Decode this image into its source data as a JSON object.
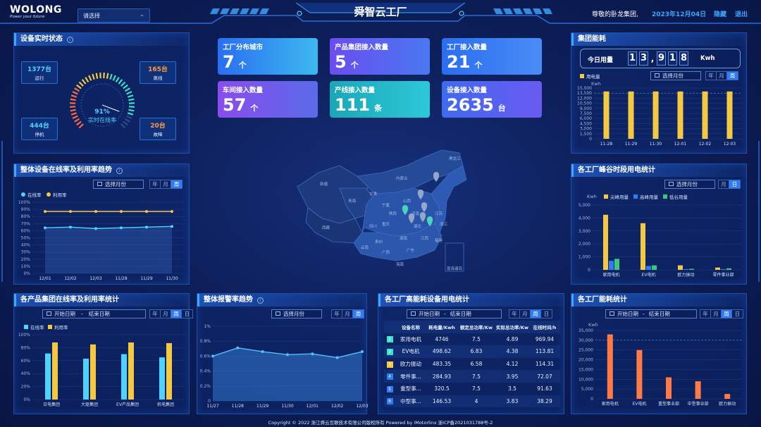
{
  "header": {
    "logo": "WOLONG",
    "logo_sub": "Power your future",
    "select_placeholder": "请选择",
    "title": "舜智云工厂",
    "greeting": "尊敬的卧龙集团,",
    "date": "2023年12月04日",
    "hide_label": "隐藏",
    "logout_label": "退出"
  },
  "device_status": {
    "title": "设备实时状态",
    "running": {
      "value": "1377台",
      "label": "运行"
    },
    "offline": {
      "value": "165台",
      "label": "离线"
    },
    "standby": {
      "value": "444台",
      "label": "停机"
    },
    "fault": {
      "value": "20台",
      "label": "故障"
    },
    "gauge": {
      "percent": "91%",
      "label": "实时在线率",
      "fraction": 0.91
    }
  },
  "kpis": [
    {
      "label": "工厂分布城市",
      "value": "7",
      "unit": "个"
    },
    {
      "label": "产品集团接入数量",
      "value": "5",
      "unit": "个"
    },
    {
      "label": "工厂接入数量",
      "value": "21",
      "unit": "个"
    },
    {
      "label": "车间接入数量",
      "value": "57",
      "unit": "个"
    },
    {
      "label": "产线接入数量",
      "value": "111",
      "unit": "条"
    },
    {
      "label": "设备接入数量",
      "value": "2635",
      "unit": "台"
    }
  ],
  "group_energy": {
    "title": "集团能耗",
    "today_label": "今日用量",
    "digits": [
      "1",
      "3",
      ",",
      "9",
      "1",
      "8"
    ],
    "unit": "Kwh",
    "month_picker": "选择月份",
    "seg": [
      "年",
      "月",
      "周"
    ],
    "legend": "用电量",
    "yunit": "Kwh"
  },
  "online_trend": {
    "title": "整体设备在线率及利用率趋势",
    "month_picker": "选择月份",
    "seg": [
      "年",
      "月",
      "周"
    ],
    "legend": [
      "在线率",
      "利用率"
    ]
  },
  "peak_valley": {
    "title": "各工厂峰谷时段用电统计",
    "month_picker": "选择月份",
    "seg": [
      "月",
      "日"
    ],
    "legend": [
      "尖峰用量",
      "高峰用量",
      "低谷用量"
    ],
    "yunit": "Kwh"
  },
  "group_rate": {
    "title": "各产品集团在线率及利用率统计",
    "start": "开始日期",
    "dash": "-",
    "end": "结束日期",
    "seg": [
      "年",
      "月",
      "周",
      "日"
    ],
    "legend": [
      "在线率",
      "利用率"
    ]
  },
  "alarm": {
    "title": "整体报警率趋势",
    "month_picker": "选择月份",
    "seg": [
      "年",
      "月",
      "周"
    ]
  },
  "high_energy": {
    "title": "各工厂高能耗设备用电统计",
    "start": "开始日期",
    "dash": "-",
    "end": "结束日期",
    "seg": [
      "年",
      "月",
      "周",
      "日"
    ],
    "headers": [
      "设备名称",
      "耗电量/Kwh",
      "额定总功率/Kw",
      "实际总功率/Kw",
      "在线时间/h"
    ],
    "rows": [
      {
        "rank": "1",
        "name": "家用电机",
        "energy": "4746",
        "rated": "7.5",
        "actual": "4.89",
        "hours": "969.94"
      },
      {
        "rank": "2",
        "name": "EV电机",
        "energy": "498.62",
        "rated": "6.83",
        "actual": "4.38",
        "hours": "113.81"
      },
      {
        "rank": "3",
        "name": "欧力振动",
        "energy": "483.35",
        "rated": "6.58",
        "actual": "4.12",
        "hours": "114.31"
      },
      {
        "rank": "4",
        "name": "零件事...",
        "energy": "284.93",
        "rated": "7.5",
        "actual": "3.95",
        "hours": "72.07"
      },
      {
        "rank": "5",
        "name": "重型事...",
        "energy": "320.5",
        "rated": "7.5",
        "actual": "3.5",
        "hours": "91.63"
      },
      {
        "rank": "6",
        "name": "中型事...",
        "energy": "146.53",
        "rated": "4",
        "actual": "3.83",
        "hours": "38.29"
      }
    ]
  },
  "factory_energy": {
    "title": "各工厂能耗统计",
    "start": "开始日期",
    "dash": "-",
    "end": "结束日期",
    "seg": [
      "年",
      "月",
      "周",
      "日"
    ],
    "yunit": "Kwh"
  },
  "map": {
    "labels": [
      "黑龙江",
      "内蒙古",
      "新疆",
      "青海",
      "西藏",
      "甘肃",
      "宁夏",
      "山西",
      "河南",
      "湖北",
      "四川",
      "重庆",
      "贵州",
      "湖南",
      "江西",
      "福建",
      "广东",
      "广西",
      "云南",
      "海南",
      "江苏",
      "浙江",
      "陕西",
      "南海诸岛"
    ]
  },
  "footer": "Copyright © 2022 浙江舜云互联技术有限公司版权所有 Powered by iMotorlinx 浙ICP备2021031788号-2",
  "colors": {
    "accent": "#2e7cf6",
    "yellow": "#f5c842",
    "cyan": "#4fd2ff",
    "orange": "#ff7a45",
    "green": "#3ec67a"
  },
  "chart_data": [
    {
      "id": "group_energy",
      "type": "bar",
      "categories": [
        "11-28",
        "11-29",
        "11-30",
        "12-01",
        "12-02",
        "12-03"
      ],
      "series": [
        {
          "name": "用电量",
          "values": [
            14000,
            14000,
            14000,
            14000,
            14000,
            14000
          ]
        }
      ],
      "ylim": [
        0,
        15000
      ],
      "yticks": [
        "0",
        "1,500",
        "3,000",
        "4,500",
        "6,000",
        "7,500",
        "9,000",
        "10,500",
        "12,000",
        "13,500",
        "15,000"
      ],
      "ylabel": "Kwh"
    },
    {
      "id": "online_trend",
      "type": "line",
      "categories": [
        "12/01",
        "12/02",
        "12/03",
        "11/28",
        "11/29",
        "11/30"
      ],
      "series": [
        {
          "name": "在线率",
          "values": [
            64,
            65,
            63,
            64,
            65,
            66
          ]
        },
        {
          "name": "利用率",
          "values": [
            87,
            87,
            87,
            87,
            87,
            87
          ]
        }
      ],
      "ylim": [
        0,
        100
      ],
      "yticks": [
        "0%",
        "10%",
        "20%",
        "30%",
        "40%",
        "50%",
        "60%",
        "70%",
        "80%",
        "90%",
        "100%"
      ]
    },
    {
      "id": "peak_valley",
      "type": "bar",
      "categories": [
        "家用电机",
        "EV电机",
        "欧力振动",
        "零件事业部"
      ],
      "series": [
        {
          "name": "尖峰用量",
          "values": [
            4250,
            3600,
            350,
            180
          ]
        },
        {
          "name": "高峰用量",
          "values": [
            700,
            300,
            60,
            60
          ]
        },
        {
          "name": "低谷用量",
          "values": [
            850,
            350,
            80,
            120
          ]
        }
      ],
      "ylim": [
        0,
        5000
      ],
      "yticks": [
        "0",
        "1,000",
        "2,000",
        "3,000",
        "4,000",
        "5,000"
      ],
      "ylabel": "Kwh"
    },
    {
      "id": "group_rate",
      "type": "bar",
      "categories": [
        "日电集团",
        "大驱集团",
        "EV产品集团",
        "机电集团"
      ],
      "series": [
        {
          "name": "在线率",
          "values": [
            71,
            63,
            70,
            65
          ]
        },
        {
          "name": "利用率",
          "values": [
            88,
            85,
            88,
            87
          ]
        }
      ],
      "ylim": [
        0,
        100
      ],
      "yticks": [
        "0%",
        "20%",
        "40%",
        "60%",
        "80%",
        "100%"
      ]
    },
    {
      "id": "alarm",
      "type": "area",
      "categories": [
        "11/27",
        "11/28",
        "11/29",
        "11/30",
        "12/01",
        "12/02",
        "12/03"
      ],
      "series": [
        {
          "name": "报警率",
          "values": [
            0.6,
            0.71,
            0.66,
            0.62,
            0.63,
            0.58,
            0.66
          ]
        }
      ],
      "ylim": [
        0,
        1
      ],
      "yticks": [
        "0",
        "0.2%",
        "0.4%",
        "0.6%",
        "0.8%",
        "1%"
      ]
    },
    {
      "id": "factory_energy",
      "type": "bar",
      "categories": [
        "家用电机",
        "EV电机",
        "重型事业部",
        "中型事业部",
        "欧力振动"
      ],
      "series": [
        {
          "name": "能耗",
          "values": [
            33000,
            25000,
            11000,
            9000,
            2500
          ]
        }
      ],
      "ylim": [
        0,
        35000
      ],
      "yticks": [
        "0",
        "5,000",
        "10,000",
        "15,000",
        "20,000",
        "25,000",
        "30,000",
        "35,000"
      ],
      "ylabel": "Kwh"
    }
  ]
}
